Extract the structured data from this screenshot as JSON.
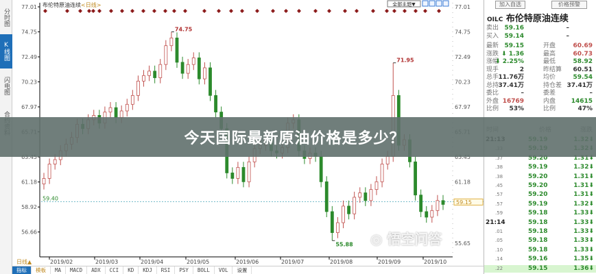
{
  "sidebar": {
    "tabs": [
      {
        "label": "分时图"
      },
      {
        "label": "K线图",
        "active": true
      },
      {
        "label": "闪电图"
      },
      {
        "label": "合约资料"
      }
    ]
  },
  "chart": {
    "title": "布伦特原油连续",
    "period": "<日线>",
    "toolbar_select": "全部主题▼",
    "period_label": "日线▲"
  },
  "chart_data": {
    "type": "candlestick",
    "y_ticks_left": [
      "77.01",
      "74.75",
      "72.49",
      "70.23",
      "67.97",
      "65.71",
      "63.45",
      "61.18",
      "58.92",
      "56.66"
    ],
    "y_ticks_right": [
      "77.01",
      "74.75",
      "72.49",
      "70.23",
      "67.97",
      "65.71",
      "63.45",
      "61.18",
      "55.65"
    ],
    "ylim": [
      54.5,
      77.01
    ],
    "x_ticks": [
      "2019/02",
      "2019/03",
      "2019/04",
      "2019/05",
      "2019/06",
      "2019/07",
      "2019/08",
      "2019/09",
      "2019/10"
    ],
    "closes": [
      61.5,
      62.8,
      63.2,
      64.0,
      64.6,
      65.2,
      66.4,
      66.0,
      66.8,
      67.2,
      66.5,
      67.5,
      67.9,
      67.0,
      67.6,
      68.2,
      69.0,
      70.3,
      70.8,
      71.2,
      70.6,
      71.8,
      73.5,
      74.2,
      72.0,
      71.0,
      71.8,
      72.4,
      70.5,
      71.5,
      69.0,
      67.5,
      66.0,
      62.0,
      61.5,
      62.5,
      61.2,
      63.0,
      64.2,
      64.5,
      65.0,
      64.0,
      63.8,
      64.3,
      66.5,
      66.8,
      64.0,
      63.3,
      63.8,
      63.5,
      61.2,
      58.5,
      56.6,
      57.5,
      59.0,
      58.3,
      59.8,
      60.2,
      59.5,
      60.5,
      61.2,
      62.8,
      63.5,
      69.0,
      64.5,
      65.0,
      63.0,
      60.0,
      58.5,
      58.0,
      58.6,
      59.5,
      59.15
    ],
    "annotations": [
      {
        "label": "74.75",
        "value": 74.75,
        "type": "high"
      },
      {
        "label": "71.95",
        "value": 71.95,
        "type": "high"
      },
      {
        "label": "55.88",
        "value": 55.88,
        "type": "low"
      }
    ],
    "reference_line": {
      "label": "59.40",
      "value": 59.4
    },
    "last_price": "59.15",
    "up_color": "#c0504d",
    "down_color": "#2c8a2c"
  },
  "panel": {
    "add_watch": "加入自选",
    "price_alert": "价格预警",
    "code": "OILC",
    "name": "布伦特原油连续",
    "quotes": [
      {
        "l": "卖出",
        "v": "59.16",
        "c": "g",
        "l2": "",
        "v2": "–",
        "c2": "k"
      },
      {
        "l": "买入",
        "v": "59.14",
        "c": "g",
        "l2": "",
        "v2": "–",
        "c2": "k"
      },
      {
        "l": "最新",
        "v": "59.15",
        "c": "g",
        "l2": "开盘",
        "v2": "60.69",
        "c2": "r"
      },
      {
        "l": "涨跌",
        "v": "⬇ 1.36",
        "c": "g",
        "l2": "最高",
        "v2": "60.73",
        "c2": "r"
      },
      {
        "l": "涨幅",
        "v": "⬇ 2.25%",
        "c": "g",
        "l2": "最低",
        "v2": "58.92",
        "c2": "g"
      },
      {
        "l": "现手",
        "v": "2",
        "c": "k",
        "l2": "昨结算",
        "v2": "60.51",
        "c2": "k"
      },
      {
        "l": "总手",
        "v": "11.76万",
        "c": "k",
        "l2": "均价",
        "v2": "59.54",
        "c2": "g"
      },
      {
        "l": "总持",
        "v": "37.41万",
        "c": "k",
        "l2": "持仓差",
        "v2": "37.41万",
        "c2": "k"
      },
      {
        "l": "委比",
        "v": "–",
        "c": "k",
        "l2": "委差",
        "v2": "–",
        "c2": "k"
      },
      {
        "l": "外盘",
        "v": "16769",
        "c": "r",
        "l2": "内盘",
        "v2": "14615",
        "c2": "g"
      },
      {
        "l": "比例",
        "v": "53%",
        "c": "k",
        "l2": "比例",
        "v2": "47%",
        "c2": "k"
      }
    ],
    "tick_headers": [
      "时间",
      "价格",
      "涨跌"
    ],
    "ticks": [
      {
        "t": "21:13",
        "p": "59.19",
        "d": "1.32⬇"
      },
      {
        "t": ".33",
        "p": "59.19",
        "d": "1.32⬇"
      },
      {
        "t": ".37",
        "p": "59.20",
        "d": "1.31⬇"
      },
      {
        "t": ".38",
        "p": "59.19",
        "d": "1.32⬇"
      },
      {
        "t": ".38",
        "p": "59.20",
        "d": "1.31⬇"
      },
      {
        "t": ".45",
        "p": "59.20",
        "d": "1.31⬇"
      },
      {
        "t": ".57",
        "p": "59.20",
        "d": "1.31⬇"
      },
      {
        "t": ".57",
        "p": "59.19",
        "d": "1.32⬇"
      },
      {
        "t": ".59",
        "p": "59.18",
        "d": "1.33⬇"
      },
      {
        "t": "21:14",
        "p": "59.18",
        "d": "1.33⬇"
      },
      {
        "t": ".01",
        "p": "59.18",
        "d": "1.33⬇"
      },
      {
        "t": ".05",
        "p": "59.18",
        "d": "1.33⬇"
      },
      {
        "t": ".10",
        "p": "59.18",
        "d": "1.33⬇"
      },
      {
        "t": ".14",
        "p": "59.16",
        "d": "1.35⬇"
      },
      {
        "t": ".22",
        "p": "59.15",
        "d": "1.36⬇"
      }
    ]
  },
  "bottom_tabs": [
    "指标",
    "模板",
    "MA",
    "MACD",
    "ADX",
    "CCI",
    "KD",
    "KDJ",
    "RSI",
    "PSY",
    "BOLL",
    "VOL",
    "设置"
  ],
  "banner": {
    "text": "今天国际最新原油价格是多少？"
  },
  "watermark": "悟空问答"
}
